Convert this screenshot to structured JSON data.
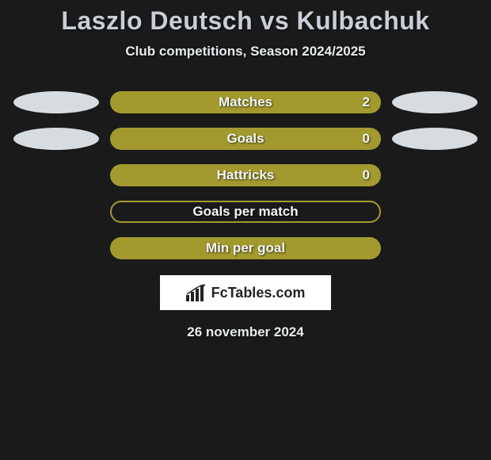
{
  "title": "Laszlo Deutsch vs Kulbachuk",
  "subtitle": "Club competitions, Season 2024/2025",
  "date": "26 november 2024",
  "logo_text": "FcTables.com",
  "colors": {
    "background": "#1a1a1a",
    "title_color": "#c9cfd6",
    "text_color": "#e8ecef",
    "marker_light": "#d6dce0",
    "bar_fill": "#a39a2f",
    "bar_border": "#a39a2f",
    "logo_bg": "#ffffff",
    "logo_text": "#222222"
  },
  "rows": [
    {
      "label": "Matches",
      "value": "2",
      "has_markers": true,
      "filled": true
    },
    {
      "label": "Goals",
      "value": "0",
      "has_markers": true,
      "filled": true
    },
    {
      "label": "Hattricks",
      "value": "0",
      "has_markers": false,
      "filled": true
    },
    {
      "label": "Goals per match",
      "value": "",
      "has_markers": false,
      "filled": false
    },
    {
      "label": "Min per goal",
      "value": "",
      "has_markers": false,
      "filled": true
    }
  ]
}
